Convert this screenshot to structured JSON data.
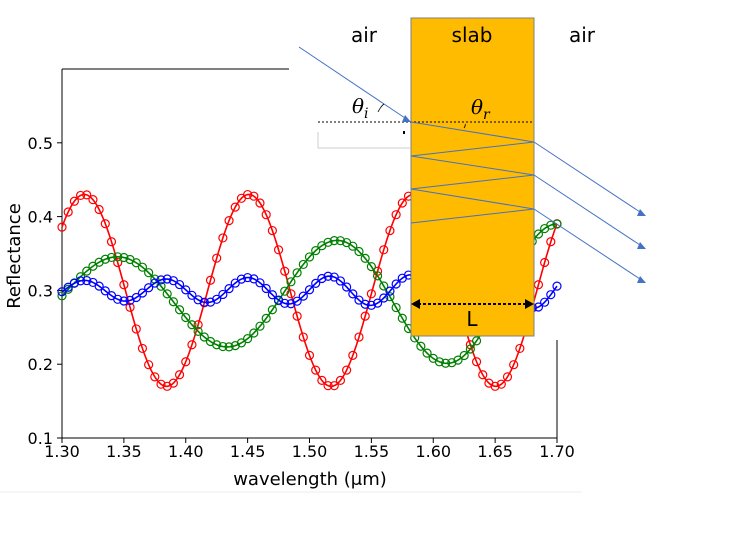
{
  "chart_data": {
    "type": "line",
    "title": "",
    "xlabel": "wavelength (μm)",
    "ylabel": "Reflectance",
    "xlim": [
      1.3,
      1.7
    ],
    "ylim": [
      0.1,
      0.6
    ],
    "xticks": [
      "1.30",
      "1.35",
      "1.40",
      "1.45",
      "1.50",
      "1.55",
      "1.60",
      "1.65",
      "1.70"
    ],
    "yticks": [
      "0.1",
      "0.2",
      "0.3",
      "0.4",
      "0.5"
    ],
    "grid": false,
    "markers": "open-circle",
    "series": [
      {
        "color": "#ff0000",
        "mean": 0.3,
        "amplitude": 0.13,
        "period": 0.133,
        "peak_x": 1.318,
        "amp_slope": 0.0
      },
      {
        "color": "#008000",
        "mean": 0.29,
        "amplitude": 0.05,
        "period": 0.178,
        "peak_x": 1.343,
        "amp_slope": 1.0
      },
      {
        "color": "#0000ff",
        "mean": 0.3,
        "amplitude": 0.013,
        "period": 0.066,
        "peak_x": 1.318,
        "amp_slope": 0.9
      }
    ],
    "inset": {
      "region_labels": [
        "air",
        "slab",
        "air"
      ],
      "angle_incident": "θ",
      "angle_incident_sub": "i",
      "angle_reflected": "θ",
      "angle_reflected_sub": "r",
      "thickness_label": "L",
      "slab_color": "#ffbb00",
      "ray_color": "#4472c4"
    }
  }
}
